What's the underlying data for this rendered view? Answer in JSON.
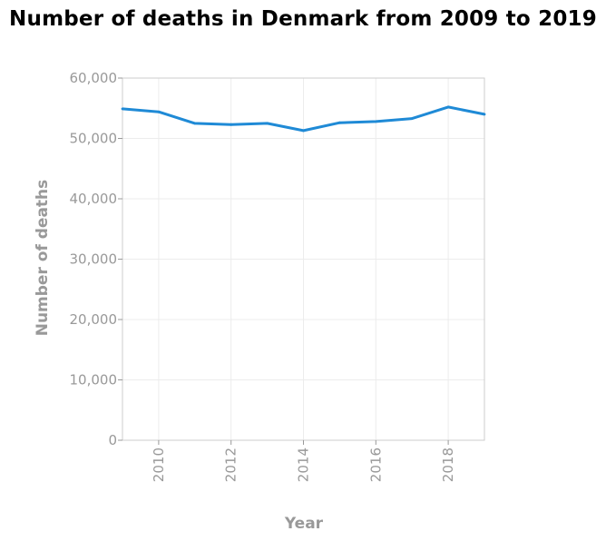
{
  "chart_data": {
    "type": "line",
    "title": "Number of deaths in Denmark from 2009 to 2019",
    "xlabel": "Year",
    "ylabel": "Number of deaths",
    "xlim": [
      2009,
      2019
    ],
    "ylim": [
      0,
      60000
    ],
    "x_ticks": [
      2010,
      2012,
      2014,
      2016,
      2018
    ],
    "x_tick_labels": [
      "2010",
      "2012",
      "2014",
      "2016",
      "2018"
    ],
    "y_ticks": [
      0,
      10000,
      20000,
      30000,
      40000,
      50000,
      60000
    ],
    "y_tick_labels": [
      "0",
      "10,000",
      "20,000",
      "30,000",
      "40,000",
      "50,000",
      "60,000"
    ],
    "grid": true,
    "legend": "none",
    "series": [
      {
        "color": "#1f8ad6",
        "x": [
          2009,
          2010,
          2011,
          2012,
          2013,
          2014,
          2015,
          2016,
          2017,
          2018,
          2019
        ],
        "y": [
          54900,
          54400,
          52500,
          52300,
          52500,
          51300,
          52600,
          52800,
          53300,
          55200,
          54000
        ]
      }
    ]
  }
}
